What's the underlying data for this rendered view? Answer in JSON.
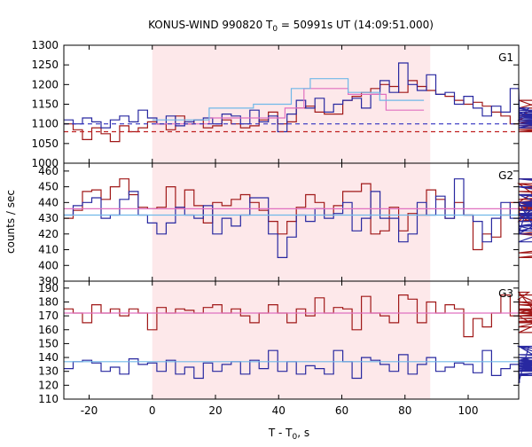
{
  "chart_data": {
    "type": "line",
    "title_main": "KONUS-WIND 990820 T",
    "title_sub": "0",
    "title_rest": " = 50991s UT (14:09:51.000)",
    "xlabel_main": "T - T",
    "xlabel_sub": "0",
    "xlabel_rest": ", s",
    "ylabel": "counts / sec",
    "xlim": [
      -28,
      116
    ],
    "xticks": [
      -20,
      0,
      20,
      40,
      60,
      80,
      100
    ],
    "highlight": {
      "x0": 0,
      "x1": 88,
      "color": "#fde8ea"
    },
    "colors": {
      "red": "#a01818",
      "blue": "#2828a0",
      "pink": "#e070c0",
      "lightblue": "#70b8e8",
      "dashred": "#c02020",
      "dashblue": "#3030c0"
    },
    "panels": [
      {
        "name": "G1",
        "ylim": [
          1000,
          1300
        ],
        "yticks": [
          1000,
          1050,
          1100,
          1150,
          1200,
          1250,
          1300
        ],
        "bin_start": -28,
        "bin_width": 2.944,
        "series": [
          {
            "color_key": "red",
            "values": [
              1100,
              1085,
              1060,
              1090,
              1075,
              1055,
              1095,
              1080,
              1090,
              1105,
              1100,
              1085,
              1120,
              1100,
              1110,
              1090,
              1095,
              1110,
              1100,
              1090,
              1095,
              1110,
              1130,
              1100,
              1105,
              1140,
              1145,
              1130,
              1125,
              1125,
              1160,
              1170,
              1180,
              1190,
              1200,
              1195,
              1180,
              1210,
              1195,
              1185,
              1175,
              1170,
              1160,
              1150,
              1155,
              1145,
              1130,
              1120,
              1100,
              1110,
              1120,
              1140,
              1160,
              1125,
              1105,
              1080,
              1095,
              1100,
              1120,
              1110,
              1090,
              1085,
              1095,
              1100,
              1110,
              1105,
              1095,
              1100,
              1100,
              1080,
              1090,
              1105,
              1100,
              1080,
              1090,
              1095,
              1100,
              1095,
              1085,
              1080,
              1090,
              1085,
              1095,
              1090,
              1100,
              1090,
              1085,
              1095,
              1090,
              1090,
              1100,
              1095,
              1085,
              1090,
              1100,
              1085,
              1090
            ]
          },
          {
            "color_key": "blue",
            "values": [
              1110,
              1100,
              1115,
              1105,
              1090,
              1110,
              1120,
              1105,
              1135,
              1115,
              1100,
              1120,
              1095,
              1105,
              1110,
              1115,
              1100,
              1125,
              1120,
              1100,
              1135,
              1105,
              1120,
              1080,
              1125,
              1160,
              1140,
              1165,
              1130,
              1150,
              1160,
              1165,
              1140,
              1175,
              1210,
              1180,
              1255,
              1200,
              1185,
              1225,
              1175,
              1180,
              1150,
              1170,
              1140,
              1120,
              1145,
              1130,
              1190,
              1110,
              1140,
              1130,
              1100,
              1110,
              1115,
              1120,
              1100,
              1090,
              1130,
              1125,
              1100,
              1110,
              1120,
              1105,
              1125,
              1135,
              1110,
              1095,
              1100,
              1120,
              1105,
              1110,
              1125,
              1115,
              1100,
              1105,
              1120,
              1110,
              1115,
              1100,
              1110,
              1125,
              1105,
              1115,
              1120,
              1110,
              1100,
              1115,
              1105,
              1120,
              1110,
              1105,
              1115,
              1120,
              1110,
              1105,
              1115
            ]
          },
          {
            "color_key": "pink",
            "steps": [
              {
                "x0": 0,
                "x1": 18,
                "y": 1100
              },
              {
                "x0": 18,
                "x1": 42,
                "y": 1115
              },
              {
                "x0": 42,
                "x1": 48,
                "y": 1140
              },
              {
                "x0": 48,
                "x1": 62,
                "y": 1190
              },
              {
                "x0": 62,
                "x1": 74,
                "y": 1175
              },
              {
                "x0": 74,
                "x1": 86,
                "y": 1135
              }
            ]
          },
          {
            "color_key": "lightblue",
            "steps": [
              {
                "x0": 0,
                "x1": 18,
                "y": 1110
              },
              {
                "x0": 18,
                "x1": 32,
                "y": 1140
              },
              {
                "x0": 32,
                "x1": 44,
                "y": 1150
              },
              {
                "x0": 44,
                "x1": 50,
                "y": 1190
              },
              {
                "x0": 50,
                "x1": 62,
                "y": 1215
              },
              {
                "x0": 62,
                "x1": 72,
                "y": 1180
              },
              {
                "x0": 72,
                "x1": 86,
                "y": 1160
              }
            ]
          },
          {
            "color_key": "dashred",
            "dashed": true,
            "value": 1080
          },
          {
            "color_key": "dashblue",
            "dashed": true,
            "value": 1100
          }
        ]
      },
      {
        "name": "G2",
        "ylim": [
          390,
          465
        ],
        "yticks": [
          390,
          400,
          410,
          420,
          430,
          440,
          450,
          460
        ],
        "bin_start": -28,
        "bin_width": 2.944,
        "series": [
          {
            "color_key": "red",
            "values": [
              430,
              435,
              447,
              448,
              442,
              450,
              455,
              445,
              437,
              436,
              437,
              450,
              437,
              448,
              438,
              427,
              440,
              438,
              442,
              445,
              440,
              435,
              428,
              420,
              428,
              437,
              445,
              440,
              432,
              438,
              447,
              447,
              452,
              420,
              422,
              437,
              422,
              433,
              432,
              448,
              442,
              430,
              440,
              432,
              410,
              420,
              418,
              432,
              440,
              432,
              428,
              440,
              452,
              435,
              440,
              430,
              445,
              440,
              428,
              432,
              438,
              420,
              428,
              440,
              440,
              452,
              436,
              442,
              450,
              440,
              432,
              445,
              447,
              440,
              445,
              432,
              438,
              433,
              420,
              405,
              425,
              425,
              440,
              432,
              455,
              438,
              408,
              435,
              440,
              445,
              436,
              432,
              438,
              425,
              430,
              440,
              436
            ]
          },
          {
            "color_key": "blue",
            "values": [
              432,
              438,
              440,
              443,
              430,
              432,
              442,
              447,
              432,
              427,
              420,
              427,
              437,
              432,
              430,
              438,
              420,
              430,
              425,
              432,
              443,
              443,
              420,
              405,
              418,
              432,
              428,
              436,
              430,
              433,
              440,
              422,
              430,
              447,
              430,
              430,
              415,
              420,
              440,
              432,
              444,
              430,
              455,
              432,
              428,
              415,
              430,
              440,
              430,
              420,
              440,
              420,
              430,
              445,
              432,
              425,
              415,
              432,
              440,
              430,
              432,
              445,
              435,
              432,
              425,
              440,
              432,
              430,
              438,
              450,
              430,
              440,
              432,
              438,
              440,
              432,
              422,
              455,
              440,
              438,
              425,
              440,
              432,
              428,
              432,
              435,
              440,
              455,
              430,
              425,
              445,
              435,
              433,
              440,
              430,
              438,
              430
            ]
          },
          {
            "color_key": "pink",
            "value": 436
          },
          {
            "color_key": "lightblue",
            "value": 432
          }
        ]
      },
      {
        "name": "G3",
        "ylim": [
          110,
          195
        ],
        "yticks": [
          110,
          120,
          130,
          140,
          150,
          160,
          170,
          180,
          190
        ],
        "bin_start": -28,
        "bin_width": 2.944,
        "series": [
          {
            "color_key": "red",
            "values": [
              175,
              172,
              165,
              178,
              172,
              175,
              170,
              175,
              172,
              160,
              176,
              172,
              175,
              174,
              172,
              176,
              178,
              172,
              175,
              170,
              165,
              172,
              178,
              172,
              165,
              175,
              170,
              183,
              172,
              176,
              175,
              160,
              184,
              172,
              170,
              165,
              185,
              182,
              165,
              180,
              172,
              178,
              175,
              155,
              168,
              162,
              172,
              185,
              170,
              182,
              187,
              170,
              158,
              170,
              172,
              185,
              165,
              175,
              162,
              178,
              172,
              165,
              175,
              170,
              168,
              172,
              180,
              165,
              172,
              175,
              170,
              168,
              172,
              178,
              166,
              175,
              172,
              170,
              168,
              175,
              172,
              165,
              178,
              170,
              175,
              172,
              165,
              175,
              172,
              168,
              174,
              172,
              175,
              170,
              172,
              175,
              172
            ]
          },
          {
            "color_key": "blue",
            "values": [
              132,
              137,
              138,
              136,
              130,
              133,
              128,
              139,
              135,
              136,
              130,
              138,
              128,
              133,
              125,
              136,
              130,
              135,
              137,
              128,
              138,
              132,
              145,
              130,
              137,
              128,
              134,
              132,
              128,
              145,
              137,
              125,
              140,
              138,
              135,
              130,
              142,
              128,
              135,
              140,
              130,
              133,
              136,
              135,
              129,
              145,
              127,
              132,
              135,
              122,
              148,
              140,
              135,
              138,
              134,
              130,
              138,
              148,
              127,
              136,
              130,
              137,
              138,
              132,
              140,
              137,
              133,
              148,
              131,
              135,
              137,
              128,
              136,
              140,
              142,
              135,
              130,
              137,
              133,
              136,
              132,
              135,
              140,
              130,
              138,
              135,
              137,
              132,
              136,
              134,
              137,
              135,
              130,
              138,
              136,
              133,
              135
            ]
          },
          {
            "color_key": "pink",
            "value": 172
          },
          {
            "color_key": "lightblue",
            "value": 137
          }
        ]
      }
    ]
  }
}
